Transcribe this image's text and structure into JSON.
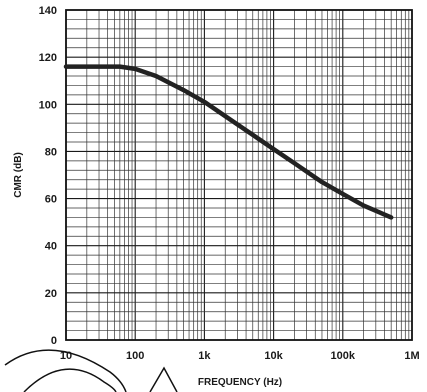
{
  "chart_data": {
    "type": "line",
    "title": "",
    "xlabel": "FREQUENCY (Hz)",
    "ylabel": "CMR (dB)",
    "xscale": "log",
    "xlim": [
      10,
      1000000
    ],
    "ylim": [
      0,
      140
    ],
    "grid": true,
    "xticks": [
      {
        "value": 10,
        "label": "10"
      },
      {
        "value": 100,
        "label": "100"
      },
      {
        "value": 1000,
        "label": "1k"
      },
      {
        "value": 10000,
        "label": "10k"
      },
      {
        "value": 100000,
        "label": "100k"
      },
      {
        "value": 1000000,
        "label": "1M"
      }
    ],
    "yticks": [
      {
        "value": 0,
        "label": "0"
      },
      {
        "value": 20,
        "label": "20"
      },
      {
        "value": 40,
        "label": "40"
      },
      {
        "value": 60,
        "label": "60"
      },
      {
        "value": 80,
        "label": "80"
      },
      {
        "value": 100,
        "label": "100"
      },
      {
        "value": 120,
        "label": "120"
      },
      {
        "value": 140,
        "label": "140"
      }
    ],
    "series": [
      {
        "x": [
          10,
          30,
          60,
          100,
          200,
          500,
          1000,
          2000,
          5000,
          10000,
          20000,
          50000,
          100000,
          200000,
          500000
        ],
        "y": [
          116,
          116,
          116,
          115,
          112,
          106,
          101,
          95,
          87,
          81,
          75,
          67,
          62,
          57,
          52
        ]
      }
    ]
  }
}
